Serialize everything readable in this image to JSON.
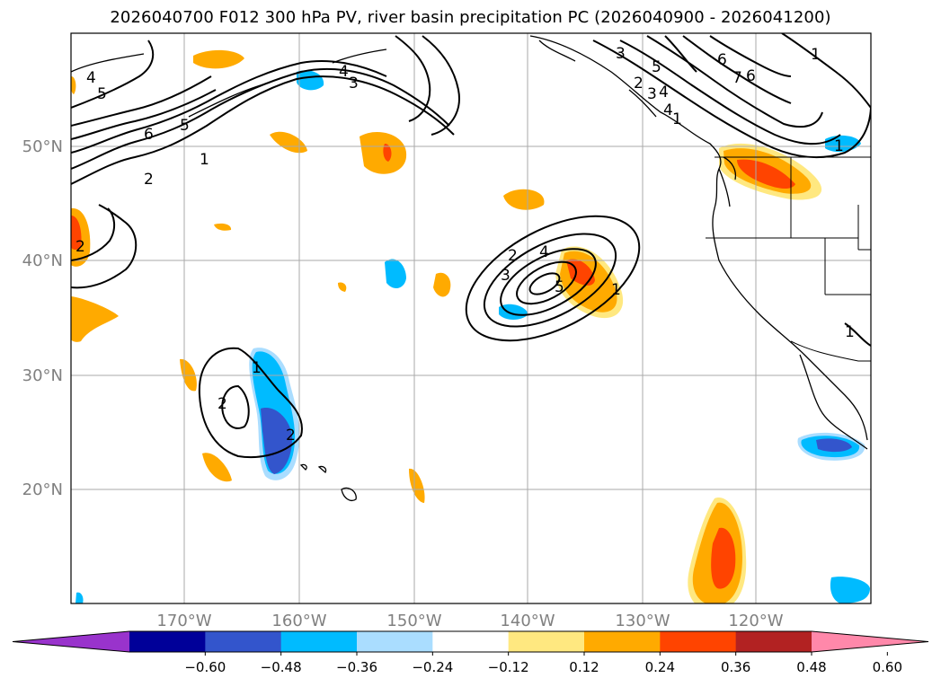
{
  "title": "2026040700 F012 300 hPa PV, river basin precipitation PC (2026040900 - 2026041200)",
  "lon_labels": [
    "170°W",
    "160°W",
    "150°W",
    "140°W",
    "130°W",
    "120°W"
  ],
  "lat_labels": [
    "50°N",
    "40°N",
    "30°N",
    "20°N"
  ],
  "colorbar": {
    "ticks": [
      "−0.60",
      "−0.48",
      "−0.36",
      "−0.24",
      "−0.12",
      "0.12",
      "0.24",
      "0.36",
      "0.48",
      "0.60"
    ],
    "colors": [
      "#9933cc",
      "#000099",
      "#3355cc",
      "#00bbff",
      "#aaddff",
      "#ffffff",
      "#ffe880",
      "#ffaa00",
      "#ff4400",
      "#b22222",
      "#ff88aa"
    ]
  },
  "pv_labels": [
    "1",
    "2",
    "3",
    "4",
    "5",
    "6",
    "7",
    "4",
    "3",
    "2",
    "1",
    "2",
    "3",
    "4",
    "5",
    "1",
    "2",
    "1",
    "4",
    "5",
    "6",
    "1",
    "4",
    "3",
    "5",
    "6",
    "2",
    "1",
    "2",
    "1"
  ],
  "colors": {
    "coast": "#000000",
    "grid": "#aaaaaa",
    "contour": "#000000"
  }
}
